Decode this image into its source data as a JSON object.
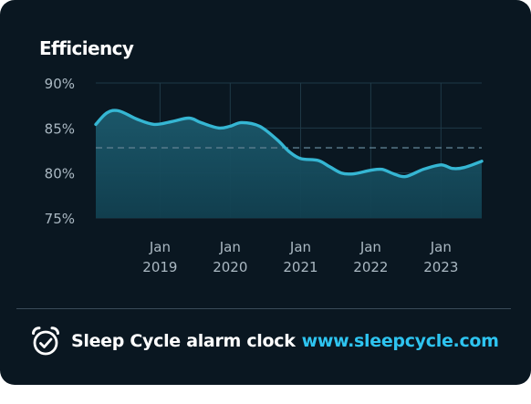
{
  "footer": {
    "brand": "Sleep Cycle alarm clock",
    "url": "www.sleepcycle.com",
    "icon": "alarm-clock-check-icon"
  },
  "colors": {
    "background": "#0a1721",
    "line": "#35b6d3",
    "grid": "#1f3a47",
    "text": "#aab8c2",
    "accent": "#2ec4f0"
  },
  "chart_data": {
    "type": "area",
    "title": "Efficiency",
    "xlabel": "",
    "ylabel": "",
    "ylim": [
      75,
      90
    ],
    "yticks": [
      {
        "value": 90,
        "label": "90%"
      },
      {
        "value": 85,
        "label": "85%"
      },
      {
        "value": 80,
        "label": "80%"
      },
      {
        "value": 75,
        "label": "75%"
      }
    ],
    "xlim": [
      "2018-02-01",
      "2023-08-01"
    ],
    "xticks": [
      {
        "date": "2019-01-01",
        "month": "Jan",
        "year": "2019"
      },
      {
        "date": "2020-01-01",
        "month": "Jan",
        "year": "2020"
      },
      {
        "date": "2021-01-01",
        "month": "Jan",
        "year": "2021"
      },
      {
        "date": "2022-01-01",
        "month": "Jan",
        "year": "2022"
      },
      {
        "date": "2023-01-01",
        "month": "Jan",
        "year": "2023"
      }
    ],
    "average_line": 82.8,
    "grid": true,
    "series": [
      {
        "points": [
          {
            "x": "2018-02-01",
            "y": 85.4
          },
          {
            "x": "2018-04-01",
            "y": 86.7
          },
          {
            "x": "2018-06-01",
            "y": 86.9
          },
          {
            "x": "2018-09-01",
            "y": 86.0
          },
          {
            "x": "2018-12-01",
            "y": 85.4
          },
          {
            "x": "2019-03-01",
            "y": 85.7
          },
          {
            "x": "2019-06-01",
            "y": 86.1
          },
          {
            "x": "2019-08-01",
            "y": 85.6
          },
          {
            "x": "2019-11-01",
            "y": 85.0
          },
          {
            "x": "2020-01-01",
            "y": 85.2
          },
          {
            "x": "2020-03-01",
            "y": 85.6
          },
          {
            "x": "2020-06-01",
            "y": 85.2
          },
          {
            "x": "2020-09-01",
            "y": 83.7
          },
          {
            "x": "2020-11-01",
            "y": 82.4
          },
          {
            "x": "2021-01-01",
            "y": 81.6
          },
          {
            "x": "2021-04-01",
            "y": 81.4
          },
          {
            "x": "2021-06-01",
            "y": 80.7
          },
          {
            "x": "2021-08-01",
            "y": 80.0
          },
          {
            "x": "2021-10-01",
            "y": 79.9
          },
          {
            "x": "2022-01-01",
            "y": 80.3
          },
          {
            "x": "2022-03-01",
            "y": 80.4
          },
          {
            "x": "2022-05-01",
            "y": 79.9
          },
          {
            "x": "2022-07-01",
            "y": 79.6
          },
          {
            "x": "2022-10-01",
            "y": 80.4
          },
          {
            "x": "2023-01-01",
            "y": 80.9
          },
          {
            "x": "2023-03-01",
            "y": 80.5
          },
          {
            "x": "2023-05-01",
            "y": 80.6
          },
          {
            "x": "2023-08-01",
            "y": 81.3
          }
        ]
      }
    ]
  }
}
